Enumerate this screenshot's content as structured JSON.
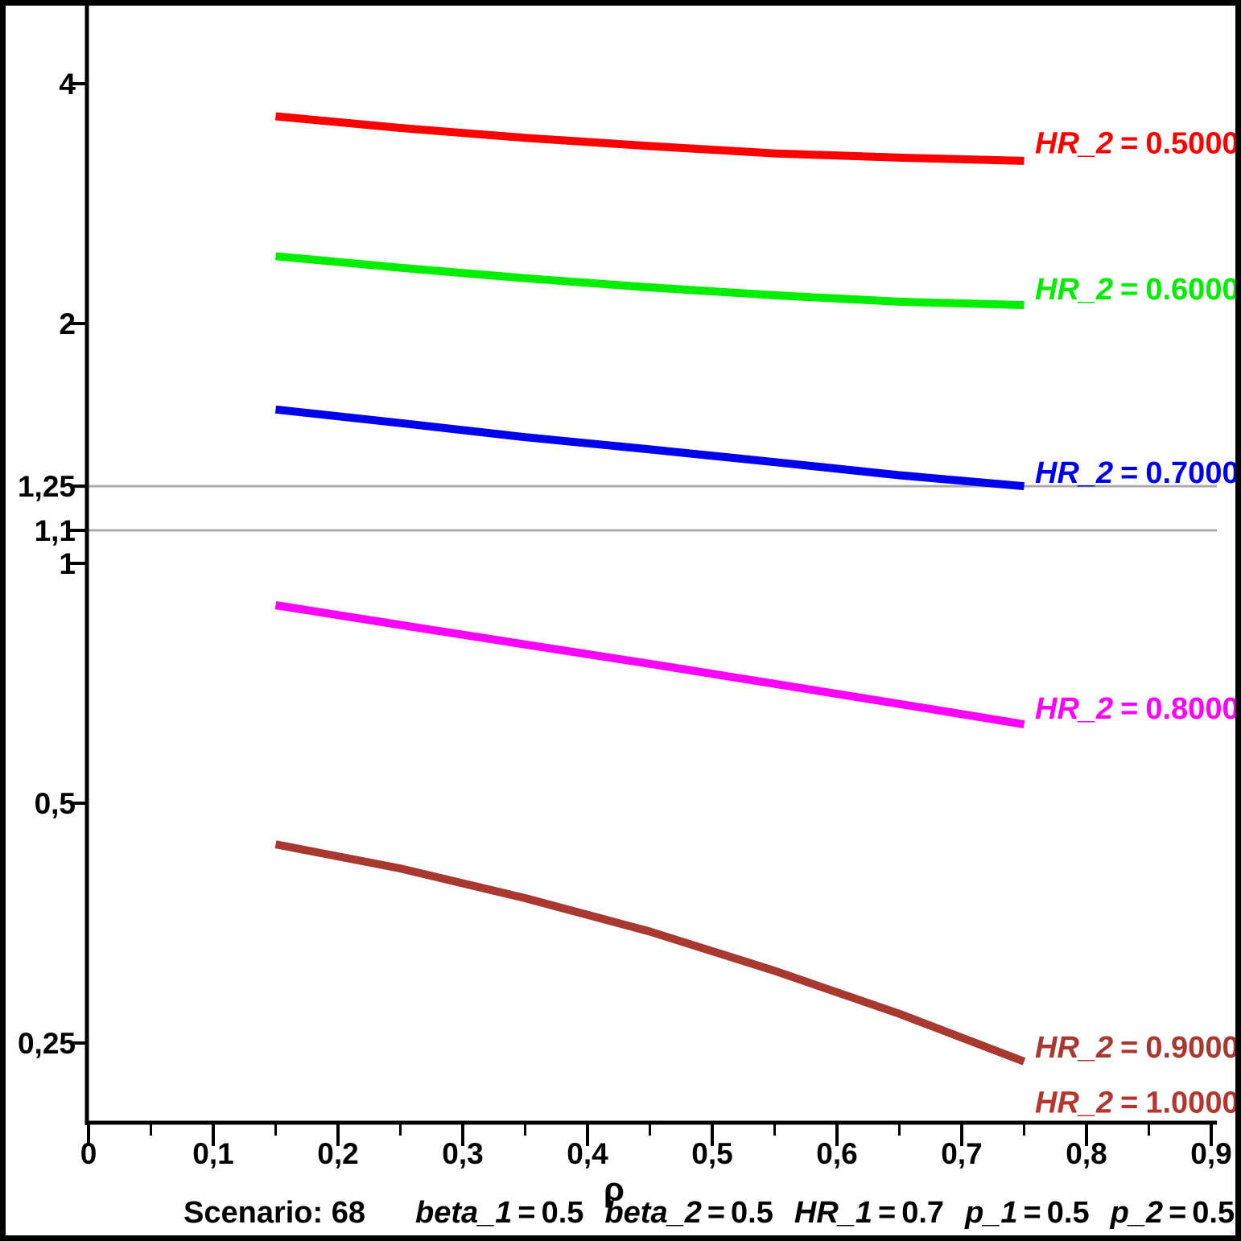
{
  "chart_data": {
    "type": "line",
    "x_label": "ρ",
    "x_range": [
      0,
      0.9
    ],
    "x_ticks": [
      {
        "v": 0.0,
        "label": "0"
      },
      {
        "v": 0.1,
        "label": "0,1"
      },
      {
        "v": 0.2,
        "label": "0,2"
      },
      {
        "v": 0.3,
        "label": "0,3"
      },
      {
        "v": 0.4,
        "label": "0,4"
      },
      {
        "v": 0.5,
        "label": "0,5"
      },
      {
        "v": 0.6,
        "label": "0,6"
      },
      {
        "v": 0.7,
        "label": "0,7"
      },
      {
        "v": 0.8,
        "label": "0,8"
      },
      {
        "v": 0.9,
        "label": "0,9"
      }
    ],
    "x_minor_ticks": [
      0.05,
      0.15,
      0.25,
      0.35,
      0.45,
      0.55,
      0.65,
      0.75,
      0.85
    ],
    "y_scale": "log",
    "y_ticks": [
      {
        "v": 4,
        "label": "4"
      },
      {
        "v": 2,
        "label": "2"
      },
      {
        "v": 1.25,
        "label": "1,25"
      },
      {
        "v": 1.1,
        "label": "1,1"
      },
      {
        "v": 1,
        "label": "1"
      },
      {
        "v": 0.5,
        "label": "0,5"
      },
      {
        "v": 0.25,
        "label": "0,25"
      }
    ],
    "reference_lines": [
      {
        "v": 1.25
      },
      {
        "v": 1.1
      }
    ],
    "reference_line_color": "#ababab",
    "grid": "off",
    "legend_position": "right-of-curves",
    "equals_sign": "=",
    "x": [
      0.15,
      0.25,
      0.35,
      0.45,
      0.55,
      0.65,
      0.75
    ],
    "series": [
      {
        "var": "HR_2",
        "eq": "0.5000",
        "color": "#ff0000",
        "values": [
          3.64,
          3.52,
          3.42,
          3.34,
          3.27,
          3.23,
          3.2
        ],
        "label_at": 3.37
      },
      {
        "var": "HR_2",
        "eq": "0.6000",
        "color": "#00ee00",
        "values": [
          2.43,
          2.35,
          2.28,
          2.22,
          2.17,
          2.13,
          2.11
        ],
        "label_at": 2.21
      },
      {
        "var": "HR_2",
        "eq": "0.7000",
        "color": "#0000ee",
        "values": [
          1.56,
          1.5,
          1.44,
          1.39,
          1.34,
          1.29,
          1.25
        ],
        "label_at": 1.3
      },
      {
        "var": "HR_2",
        "eq": "0.8000",
        "color": "#ff00ff",
        "values": [
          0.886,
          0.837,
          0.791,
          0.748,
          0.706,
          0.666,
          0.628
        ],
        "label_at": 0.658
      },
      {
        "var": "HR_2",
        "eq": "0.9000",
        "color": "#a93830",
        "values": [
          0.444,
          0.414,
          0.38,
          0.345,
          0.308,
          0.272,
          0.237
        ],
        "label_at": 0.247
      },
      {
        "var": "HR_2",
        "eq": "1.0000",
        "color": "#b5362e",
        "values": [],
        "label_at": 0.2106
      }
    ]
  },
  "footer": {
    "scenario_label": "Scenario: 68",
    "equals_sign": "=",
    "params": [
      {
        "var": "beta_1",
        "value": "0.5"
      },
      {
        "var": "beta_2",
        "value": "0.5"
      },
      {
        "var": "HR_1",
        "value": "0.7"
      },
      {
        "var": "p_1",
        "value": "0.5"
      },
      {
        "var": "p_2",
        "value": "0.5"
      }
    ]
  }
}
